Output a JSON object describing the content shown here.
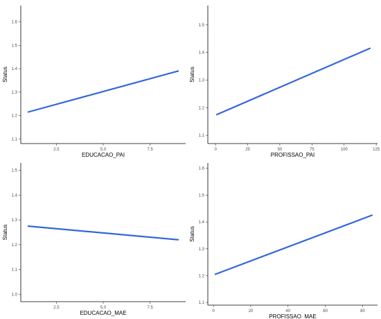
{
  "colors": {
    "line": "#3366dd",
    "axis": "#000000",
    "tick_text": "#4d4d4d"
  },
  "chart_data": [
    {
      "type": "line",
      "xlabel": "EDUCACAO_PAI",
      "ylabel": "Status",
      "xlim": [
        0.6,
        9.4
      ],
      "ylim": [
        1.08,
        1.67
      ],
      "x_ticks": [
        2.5,
        5.0,
        7.5
      ],
      "x_tick_labels": [
        "2.5",
        "5.0",
        "7.5"
      ],
      "y_ticks": [
        1.1,
        1.2,
        1.3,
        1.4,
        1.5,
        1.6
      ],
      "y_tick_labels": [
        "1.1",
        "1.2",
        "1.3",
        "1.4",
        "1.5",
        "1.6"
      ],
      "series": [
        {
          "x": [
            1,
            9
          ],
          "y": [
            1.215,
            1.39
          ]
        }
      ]
    },
    {
      "type": "line",
      "xlabel": "PROFISSAO_PAI",
      "ylabel": "Status",
      "xlim": [
        -6,
        126
      ],
      "ylim": [
        1.07,
        1.57
      ],
      "x_ticks": [
        0,
        25,
        50,
        75,
        100,
        125
      ],
      "x_tick_labels": [
        "0",
        "25",
        "50",
        "75",
        "100",
        "125"
      ],
      "y_ticks": [
        1.1,
        1.2,
        1.3,
        1.4,
        1.5
      ],
      "y_tick_labels": [
        "1.1",
        "1.2",
        "1.3",
        "1.4",
        "1.5"
      ],
      "series": [
        {
          "x": [
            1,
            120
          ],
          "y": [
            1.175,
            1.415
          ]
        }
      ]
    },
    {
      "type": "line",
      "xlabel": "EDUCACAO_MAE",
      "ylabel": "Status",
      "xlim": [
        0.6,
        9.4
      ],
      "ylim": [
        0.97,
        1.53
      ],
      "x_ticks": [
        2.5,
        5.0,
        7.5
      ],
      "x_tick_labels": [
        "2.5",
        "5.0",
        "7.5"
      ],
      "y_ticks": [
        1.0,
        1.1,
        1.2,
        1.3,
        1.4,
        1.5
      ],
      "y_tick_labels": [
        "1.0",
        "1.1",
        "1.2",
        "1.3",
        "1.4",
        "1.5"
      ],
      "series": [
        {
          "x": [
            1,
            9
          ],
          "y": [
            1.275,
            1.22
          ]
        }
      ]
    },
    {
      "type": "line",
      "xlabel": "PROFISSAO_MAE",
      "ylabel": "Status",
      "xlim": [
        -3,
        88
      ],
      "ylim": [
        1.09,
        1.62
      ],
      "x_ticks": [
        0,
        20,
        40,
        60,
        80
      ],
      "x_tick_labels": [
        "0",
        "20",
        "40",
        "60",
        "80"
      ],
      "y_ticks": [
        1.1,
        1.2,
        1.3,
        1.4,
        1.5,
        1.6
      ],
      "y_tick_labels": [
        "1.1",
        "1.2",
        "1.3",
        "1.4",
        "1.5",
        "1.6"
      ],
      "series": [
        {
          "x": [
            1,
            85
          ],
          "y": [
            1.205,
            1.425
          ]
        }
      ]
    }
  ]
}
